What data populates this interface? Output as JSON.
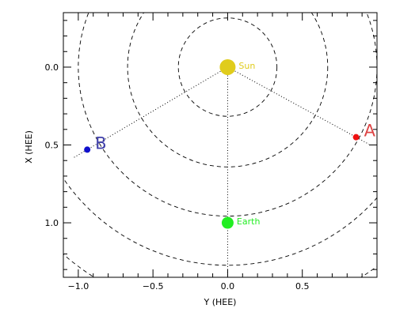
{
  "chart_data": {
    "type": "scatter",
    "title": "",
    "xlabel": "Y (HEE)",
    "ylabel": "X (HEE)",
    "xlim": [
      -1.1,
      1.0
    ],
    "ylim": [
      -0.35,
      1.35
    ],
    "y_axis_inverted": true,
    "grid": false,
    "x_ticks": [
      -1.0,
      -0.5,
      0.0,
      0.5
    ],
    "x_tick_labels": [
      "−1.0",
      "−0.5",
      "0.0",
      "0.5"
    ],
    "y_ticks": [
      0.0,
      0.5,
      1.0
    ],
    "y_tick_labels": [
      "0.0",
      "0.5",
      "1.0"
    ],
    "circles": {
      "center": [
        0.0,
        0.0
      ],
      "radii": [
        0.33,
        0.67,
        1.0,
        1.33,
        1.67
      ],
      "style": "dashed"
    },
    "points": [
      {
        "label": "Sun",
        "x": 0.0,
        "y": 0.0,
        "color": "#e0cc1c",
        "kind": "body"
      },
      {
        "label": "Earth",
        "x": 0.0,
        "y": 1.0,
        "color": "#22ee22",
        "kind": "body"
      },
      {
        "label": "A",
        "x": 0.86,
        "y": 0.45,
        "color": "#ee1111",
        "kind": "spacecraft"
      },
      {
        "label": "B",
        "x": -0.94,
        "y": 0.53,
        "color": "#1010cc",
        "kind": "spacecraft"
      }
    ],
    "lines": [
      {
        "from": "Sun",
        "to": "A",
        "style": "dotted",
        "extend": 1.1
      },
      {
        "from": "Sun",
        "to": "B",
        "style": "dotted",
        "extend": 1.1
      },
      {
        "from": "Sun",
        "to": "Earth",
        "style": "dotted",
        "extend": 1.6
      }
    ],
    "label_colors": {
      "Sun": "#e0cc1c",
      "Earth": "#22ee22",
      "A": "#dd4444",
      "B": "#4040aa"
    }
  }
}
